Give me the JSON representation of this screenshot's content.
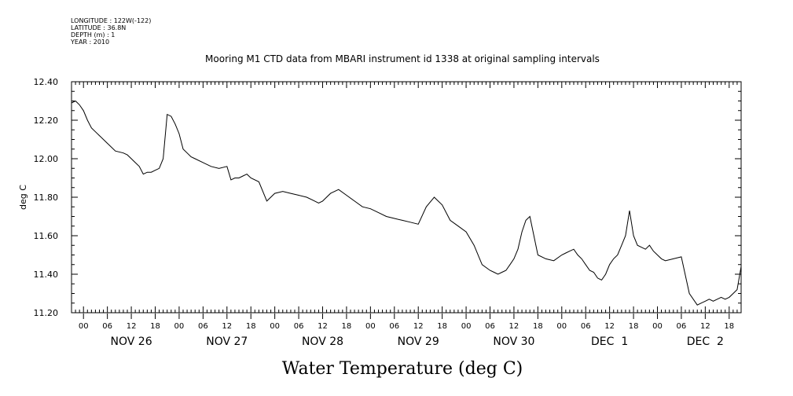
{
  "metadata": {
    "longitude": "LONGITUDE : 122W(-122)",
    "latitude": "LATITUDE : 36.8N",
    "depth": "DEPTH (m) : 1",
    "year": "YEAR : 2010"
  },
  "chart_data": {
    "type": "line",
    "title": "Mooring M1 CTD data from MBARI instrument id 1338 at original sampling intervals",
    "xlabel": "Water Temperature (deg C)",
    "ylabel": "deg C",
    "ylim": [
      11.2,
      12.4
    ],
    "y_ticks": [
      "11.20",
      "11.40",
      "11.60",
      "11.80",
      "12.00",
      "12.20",
      "12.40"
    ],
    "x_range_hours": [
      -3,
      165
    ],
    "x_hour_ticks": [
      "00",
      "06",
      "12",
      "18",
      "00",
      "06",
      "12",
      "18",
      "00",
      "06",
      "12",
      "18",
      "00",
      "06",
      "12",
      "18",
      "00",
      "06",
      "12",
      "18",
      "00",
      "06",
      "12",
      "18",
      "00",
      "06",
      "12",
      "18"
    ],
    "x_day_labels": [
      "NOV 26",
      "NOV 27",
      "NOV 28",
      "NOV 29",
      "NOV 30",
      "DEC  1",
      "DEC  2"
    ],
    "grid": false,
    "series": [
      {
        "x": [
          -3,
          -2,
          -1,
          0,
          1,
          2,
          3,
          4,
          6,
          8,
          10,
          11,
          12,
          13,
          14,
          15,
          16,
          17,
          18,
          19,
          20,
          21,
          22,
          23,
          24,
          25,
          26,
          27,
          28,
          30,
          32,
          34,
          36,
          37,
          38,
          39,
          40,
          41,
          42,
          44,
          46,
          48,
          50,
          52,
          54,
          56,
          58,
          59,
          60,
          62,
          64,
          66,
          68,
          70,
          72,
          74,
          76,
          78,
          80,
          82,
          84,
          86,
          88,
          90,
          92,
          94,
          96,
          98,
          100,
          102,
          103,
          104,
          105,
          106,
          107,
          108,
          109,
          110,
          111,
          112,
          114,
          116,
          118,
          120,
          121,
          122,
          123,
          124,
          125,
          126,
          127,
          128,
          129,
          130,
          131,
          132,
          133,
          134,
          135,
          136,
          137,
          138,
          139,
          140,
          141,
          142,
          143,
          144,
          145,
          146,
          148,
          150,
          152,
          154,
          155,
          156,
          157,
          158,
          159,
          160,
          161,
          162,
          163,
          164,
          165
        ],
        "y": [
          12.29,
          12.3,
          12.28,
          12.25,
          12.2,
          12.16,
          12.14,
          12.12,
          12.08,
          12.04,
          12.03,
          12.02,
          12.0,
          11.98,
          11.96,
          11.92,
          11.93,
          11.93,
          11.94,
          11.95,
          12.0,
          12.23,
          12.22,
          12.18,
          12.13,
          12.05,
          12.03,
          12.01,
          12.0,
          11.98,
          11.96,
          11.95,
          11.96,
          11.89,
          11.9,
          11.9,
          11.91,
          11.92,
          11.9,
          11.88,
          11.78,
          11.82,
          11.83,
          11.82,
          11.81,
          11.8,
          11.78,
          11.77,
          11.78,
          11.82,
          11.84,
          11.81,
          11.78,
          11.75,
          11.74,
          11.72,
          11.7,
          11.69,
          11.68,
          11.67,
          11.66,
          11.75,
          11.8,
          11.76,
          11.68,
          11.65,
          11.62,
          11.55,
          11.45,
          11.42,
          11.41,
          11.4,
          11.41,
          11.42,
          11.45,
          11.48,
          11.53,
          11.62,
          11.68,
          11.7,
          11.5,
          11.48,
          11.47,
          11.5,
          11.51,
          11.52,
          11.53,
          11.5,
          11.48,
          11.45,
          11.42,
          11.41,
          11.38,
          11.37,
          11.4,
          11.45,
          11.48,
          11.5,
          11.55,
          11.6,
          11.73,
          11.6,
          11.55,
          11.54,
          11.53,
          11.55,
          11.52,
          11.5,
          11.48,
          11.47,
          11.48,
          11.49,
          11.3,
          11.24,
          11.25,
          11.26,
          11.27,
          11.26,
          11.27,
          11.28,
          11.27,
          11.28,
          11.3,
          11.32,
          11.44
        ]
      }
    ]
  }
}
